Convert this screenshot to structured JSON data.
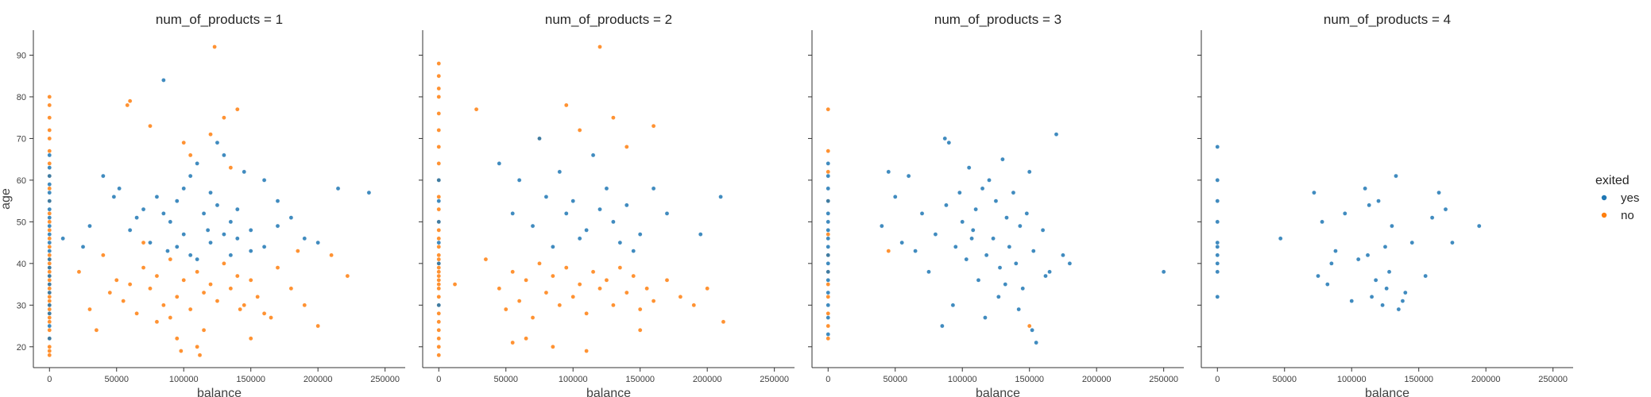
{
  "chart_data": {
    "type": "scatter",
    "facet_variable": "num_of_products",
    "xlabel": "balance",
    "ylabel": "age",
    "xlim": [
      -12000,
      265000
    ],
    "ylim": [
      15,
      96
    ],
    "xticks": [
      0,
      50000,
      100000,
      150000,
      200000,
      250000
    ],
    "yticks": [
      20,
      30,
      40,
      50,
      60,
      70,
      80,
      90
    ],
    "legend": {
      "title": "exited",
      "placement": "right",
      "entries": [
        {
          "label": "yes",
          "color": "#1f77b4"
        },
        {
          "label": "no",
          "color": "#ff7f0e"
        }
      ]
    },
    "panels": [
      {
        "title": "num_of_products = 1",
        "series": [
          {
            "name": "yes",
            "color": "#1f77b4",
            "zero_balance_ages": [
              22,
              25,
              28,
              30,
              33,
              35,
              37,
              39,
              41,
              43,
              45,
              47,
              49,
              51,
              53,
              55,
              57,
              59,
              61,
              63,
              66
            ],
            "x": [
              10000,
              25000,
              30000,
              40000,
              48000,
              52000,
              60000,
              70000,
              80000,
              85000,
              90000,
              95000,
              100000,
              105000,
              110000,
              115000,
              120000,
              125000,
              130000,
              135000,
              140000,
              150000,
              160000,
              170000,
              180000,
              190000,
              200000,
              215000,
              238000,
              88000,
              105000,
              120000,
              95000,
              130000,
              140000,
              75000,
              150000,
              110000,
              160000,
              100000,
              65000,
              125000,
              145000,
              85000,
              170000,
              118000,
              135000
            ],
            "y": [
              46,
              44,
              49,
              61,
              56,
              58,
              48,
              53,
              56,
              84,
              50,
              55,
              47,
              61,
              64,
              52,
              57,
              54,
              66,
              50,
              53,
              48,
              60,
              55,
              51,
              46,
              45,
              58,
              57,
              43,
              42,
              45,
              44,
              47,
              46,
              45,
              43,
              41,
              44,
              58,
              51,
              69,
              62,
              52,
              49,
              48,
              42
            ]
          },
          {
            "name": "no",
            "color": "#ff7f0e",
            "zero_balance_ages": [
              18,
              19,
              20,
              22,
              24,
              26,
              27,
              28,
              29,
              30,
              31,
              32,
              33,
              34,
              35,
              36,
              37,
              38,
              39,
              40,
              41,
              42,
              44,
              46,
              48,
              50,
              52,
              55,
              58,
              61,
              64,
              67,
              70,
              72,
              75,
              78,
              80
            ],
            "x": [
              22000,
              30000,
              35000,
              40000,
              45000,
              50000,
              55000,
              60000,
              65000,
              70000,
              75000,
              80000,
              85000,
              90000,
              95000,
              100000,
              105000,
              110000,
              115000,
              120000,
              125000,
              130000,
              135000,
              140000,
              145000,
              150000,
              155000,
              160000,
              170000,
              180000,
              190000,
              200000,
              210000,
              222000,
              95000,
              110000,
              123000,
              60000,
              75000,
              140000,
              100000,
              130000,
              90000,
              115000,
              150000,
              80000,
              105000,
              120000,
              135000,
              70000,
              165000,
              98000,
              112000,
              142000,
              58000,
              185000
            ],
            "y": [
              38,
              29,
              24,
              42,
              33,
              36,
              31,
              35,
              28,
              39,
              34,
              37,
              30,
              41,
              32,
              36,
              29,
              38,
              33,
              35,
              31,
              40,
              34,
              37,
              30,
              36,
              32,
              28,
              39,
              34,
              30,
              25,
              42,
              37,
              22,
              20,
              92,
              79,
              73,
              77,
              69,
              75,
              27,
              24,
              22,
              26,
              66,
              71,
              63,
              45,
              27,
              19,
              18,
              29,
              78,
              43
            ]
          }
        ]
      },
      {
        "title": "num_of_products = 2",
        "series": [
          {
            "name": "yes",
            "color": "#1f77b4",
            "zero_balance_ages": [
              30,
              40,
              45,
              50,
              55,
              60
            ],
            "x": [
              45000,
              55000,
              60000,
              70000,
              75000,
              80000,
              90000,
              95000,
              100000,
              110000,
              115000,
              120000,
              125000,
              130000,
              140000,
              150000,
              160000,
              170000,
              195000,
              210000,
              85000,
              105000,
              135000,
              145000
            ],
            "y": [
              64,
              52,
              60,
              49,
              70,
              56,
              62,
              52,
              55,
              48,
              66,
              53,
              58,
              50,
              54,
              47,
              58,
              52,
              47,
              56,
              44,
              46,
              45,
              43
            ]
          },
          {
            "name": "no",
            "color": "#ff7f0e",
            "zero_balance_ages": [
              18,
              20,
              22,
              24,
              26,
              28,
              30,
              32,
              34,
              35,
              36,
              37,
              38,
              39,
              40,
              41,
              42,
              44,
              46,
              48,
              50,
              53,
              56,
              60,
              64,
              68,
              72,
              76,
              80,
              82,
              85,
              88
            ],
            "x": [
              12000,
              28000,
              35000,
              45000,
              50000,
              55000,
              60000,
              65000,
              70000,
              75000,
              80000,
              85000,
              90000,
              95000,
              100000,
              105000,
              110000,
              115000,
              120000,
              125000,
              130000,
              135000,
              140000,
              145000,
              150000,
              155000,
              160000,
              170000,
              180000,
              190000,
              200000,
              212000,
              120000,
              95000,
              105000,
              130000,
              75000,
              140000,
              85000,
              65000,
              110000,
              150000,
              160000,
              55000
            ],
            "y": [
              35,
              77,
              41,
              34,
              29,
              38,
              31,
              36,
              27,
              40,
              33,
              37,
              30,
              39,
              32,
              35,
              28,
              38,
              34,
              36,
              30,
              39,
              33,
              37,
              29,
              34,
              31,
              36,
              32,
              30,
              34,
              26,
              92,
              78,
              72,
              75,
              70,
              68,
              20,
              22,
              19,
              24,
              73,
              21
            ]
          }
        ]
      },
      {
        "title": "num_of_products = 3",
        "series": [
          {
            "name": "yes",
            "color": "#1f77b4",
            "zero_balance_ages": [
              23,
              27,
              30,
              33,
              36,
              38,
              40,
              42,
              44,
              46,
              48,
              50,
              52,
              55,
              58,
              61,
              64
            ],
            "x": [
              40000,
              45000,
              50000,
              55000,
              60000,
              65000,
              70000,
              75000,
              80000,
              85000,
              88000,
              90000,
              95000,
              98000,
              100000,
              103000,
              105000,
              108000,
              110000,
              112000,
              115000,
              118000,
              120000,
              123000,
              125000,
              128000,
              130000,
              133000,
              135000,
              138000,
              140000,
              143000,
              145000,
              148000,
              150000,
              153000,
              155000,
              160000,
              165000,
              170000,
              175000,
              180000,
              250000,
              93000,
              117000,
              127000,
              142000,
              152000,
              107000,
              132000,
              87000,
              162000
            ],
            "y": [
              49,
              62,
              56,
              45,
              61,
              43,
              52,
              38,
              47,
              25,
              54,
              69,
              44,
              57,
              50,
              41,
              63,
              48,
              53,
              36,
              58,
              42,
              60,
              46,
              55,
              39,
              65,
              51,
              44,
              57,
              40,
              49,
              34,
              52,
              62,
              43,
              21,
              48,
              38,
              71,
              42,
              40,
              38,
              30,
              27,
              32,
              29,
              24,
              46,
              35,
              70,
              37
            ]
          },
          {
            "name": "no",
            "color": "#ff7f0e",
            "zero_balance_ages": [
              22,
              25,
              28,
              32,
              35,
              38,
              42,
              47,
              55,
              62,
              67,
              77
            ],
            "x": [
              45000,
              150000
            ],
            "y": [
              43,
              25
            ]
          }
        ]
      },
      {
        "title": "num_of_products = 4",
        "series": [
          {
            "name": "yes",
            "color": "#1f77b4",
            "zero_balance_ages": [
              32,
              38,
              40,
              42,
              44,
              45,
              50,
              55,
              60,
              68
            ],
            "x": [
              47000,
              72000,
              75000,
              78000,
              85000,
              88000,
              95000,
              100000,
              105000,
              110000,
              113000,
              115000,
              118000,
              120000,
              123000,
              125000,
              128000,
              130000,
              133000,
              135000,
              140000,
              145000,
              155000,
              160000,
              165000,
              170000,
              175000,
              195000,
              112000,
              126000,
              138000,
              82000
            ],
            "y": [
              46,
              57,
              37,
              50,
              40,
              43,
              52,
              31,
              41,
              58,
              54,
              32,
              36,
              55,
              30,
              44,
              38,
              49,
              61,
              29,
              33,
              45,
              37,
              51,
              57,
              53,
              45,
              49,
              42,
              34,
              31,
              35
            ]
          }
        ]
      }
    ]
  }
}
